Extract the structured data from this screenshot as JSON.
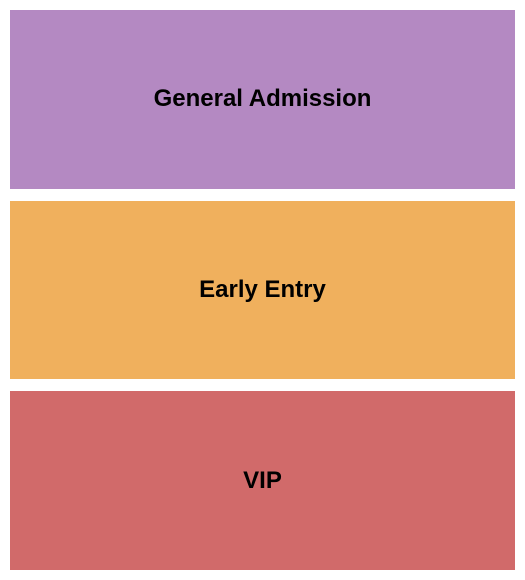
{
  "seating_chart": {
    "type": "infographic",
    "background_color": "#ffffff",
    "container_width": 525,
    "container_height": 580,
    "padding": 10,
    "gap": 12,
    "sections": [
      {
        "label": "General Admission",
        "fill_color": "#b489c2",
        "text_color": "#000000",
        "font_size": 24,
        "font_weight": "bold"
      },
      {
        "label": "Early Entry",
        "fill_color": "#f0b05d",
        "text_color": "#000000",
        "font_size": 24,
        "font_weight": "bold"
      },
      {
        "label": "VIP",
        "fill_color": "#d16a6a",
        "text_color": "#000000",
        "font_size": 24,
        "font_weight": "bold"
      }
    ]
  }
}
